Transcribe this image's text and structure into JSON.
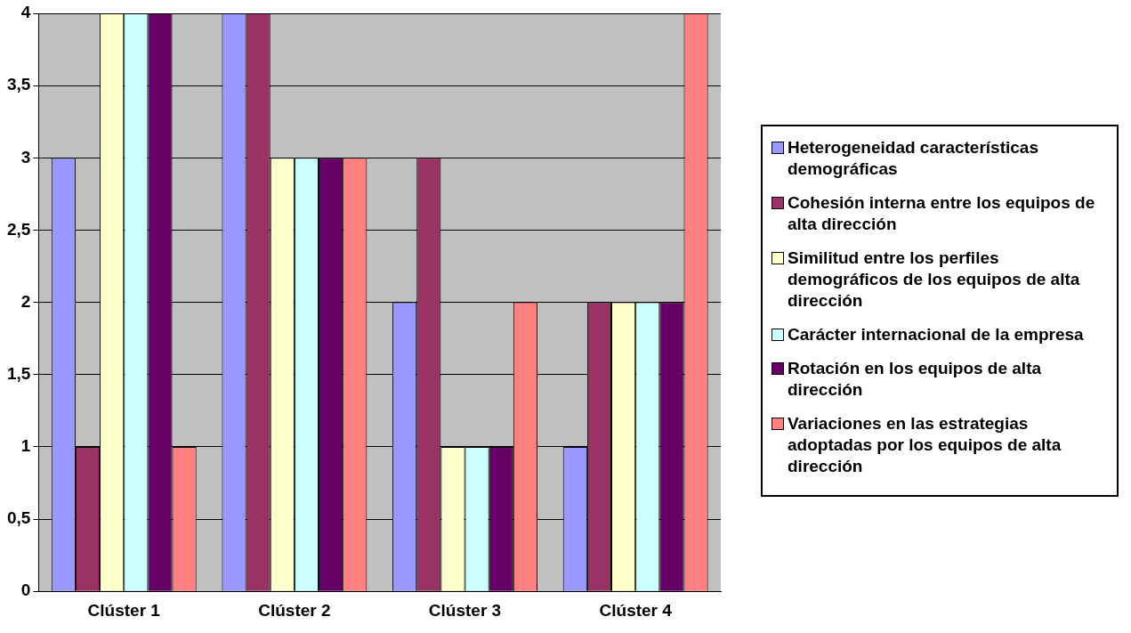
{
  "chart_data": {
    "type": "bar",
    "categories": [
      "Clúster 1",
      "Clúster 2",
      "Clúster 3",
      "Clúster 4"
    ],
    "series": [
      {
        "name": "Heterogeneidad características demográficas",
        "color": "#9999ff",
        "values": [
          3,
          4,
          2,
          1
        ]
      },
      {
        "name": "Cohesión interna entre los equipos de alta dirección",
        "color": "#993366",
        "values": [
          1,
          4,
          3,
          2
        ]
      },
      {
        "name": "Similitud entre los perfiles demográficos de los equipos de alta dirección",
        "color": "#ffffcc",
        "values": [
          4,
          3,
          1,
          2
        ]
      },
      {
        "name": "Carácter internacional de la empresa",
        "color": "#ccffff",
        "values": [
          4,
          3,
          1,
          2
        ]
      },
      {
        "name": "Rotación en los equipos de alta dirección",
        "color": "#660066",
        "values": [
          4,
          3,
          1,
          2
        ]
      },
      {
        "name": "Variaciones en las estrategias adoptadas por los equipos de alta dirección",
        "color": "#ff8080",
        "values": [
          1,
          3,
          2,
          4
        ]
      }
    ],
    "ylim": [
      0,
      4
    ],
    "yticks": [
      0,
      {
        "value": 0.5,
        "label": "0,5"
      },
      1,
      {
        "value": 1.5,
        "label": "1,5"
      },
      2,
      {
        "value": 2.5,
        "label": "2,5"
      },
      3,
      {
        "value": 3.5,
        "label": "3,5"
      },
      4
    ],
    "grid": "y",
    "legend": "right"
  }
}
